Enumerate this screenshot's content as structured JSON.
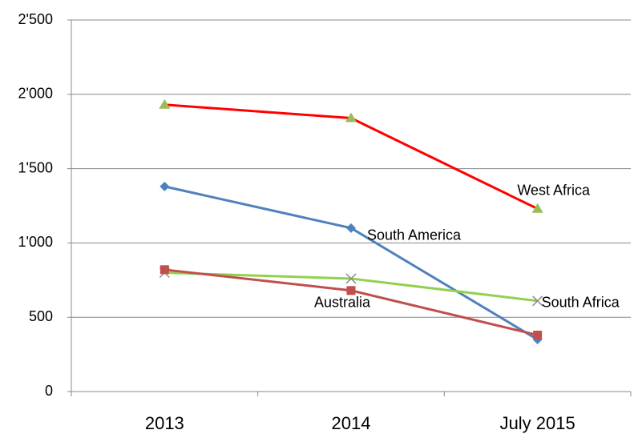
{
  "chart_data": {
    "type": "line",
    "categories": [
      "2013",
      "2014",
      "July 2015"
    ],
    "series": [
      {
        "name": "West Africa",
        "color": "#ff0000",
        "marker": "triangle",
        "marker_color": "#9bbb59",
        "values": [
          1930,
          1840,
          1230
        ]
      },
      {
        "name": "South America",
        "color": "#4f81bd",
        "marker": "diamond",
        "marker_color": "#4f81bd",
        "values": [
          1380,
          1100,
          350
        ]
      },
      {
        "name": "South Africa",
        "color": "#92d050",
        "marker": "x",
        "marker_color": "#8c8c8c",
        "values": [
          800,
          760,
          610
        ]
      },
      {
        "name": "Australia",
        "color": "#c0504d",
        "marker": "square",
        "marker_color": "#c0504d",
        "values": [
          820,
          680,
          380
        ]
      }
    ],
    "ylim": [
      0,
      2500
    ],
    "yticks": [
      0,
      500,
      {
        "value": 1000,
        "label": "1'000"
      },
      {
        "value": 1500,
        "label": "1'500"
      },
      {
        "value": 2000,
        "label": "2'000"
      },
      {
        "value": 2500,
        "label": "2'500"
      }
    ],
    "grid": true
  }
}
